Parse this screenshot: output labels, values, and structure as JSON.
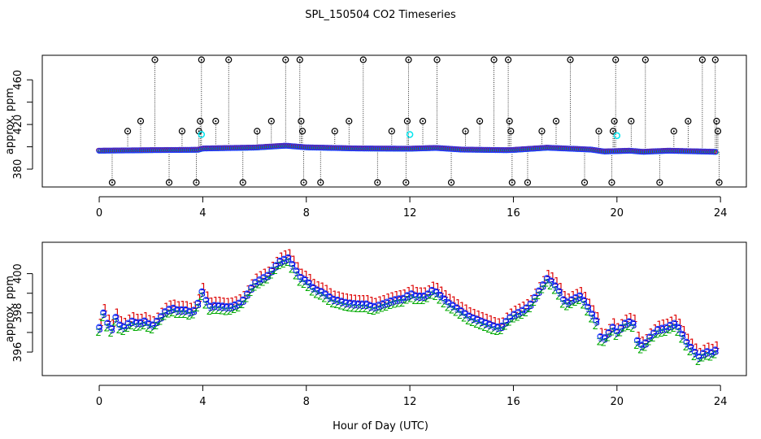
{
  "chart_data": {
    "type": "scatter",
    "title": "SPL_150504  CO2 Timeseries",
    "xlabel": "Hour of Day (UTC)",
    "panels": [
      {
        "name": "full-range",
        "ylabel": "approx. ppm",
        "xlim": [
          -2.2,
          25
        ],
        "ylim": [
          364,
          482
        ],
        "xticks": [
          0,
          4,
          8,
          12,
          16,
          20,
          24
        ],
        "yticks": [
          380,
          420,
          460
        ],
        "yticks_minor": [
          400,
          440
        ],
        "baseline": [
          [
            0.0,
            396.5
          ],
          [
            2.0,
            397.0
          ],
          [
            3.8,
            397.3
          ],
          [
            4.0,
            398.5
          ],
          [
            6.0,
            399.3
          ],
          [
            7.2,
            401.0
          ],
          [
            8.0,
            399.5
          ],
          [
            10.0,
            398.5
          ],
          [
            12.0,
            398.3
          ],
          [
            13.0,
            399.0
          ],
          [
            14.0,
            397.5
          ],
          [
            15.7,
            397.0
          ],
          [
            16.0,
            397.2
          ],
          [
            17.3,
            399.2
          ],
          [
            19.0,
            397.5
          ],
          [
            19.5,
            395.8
          ],
          [
            20.5,
            396.5
          ],
          [
            21.0,
            395.5
          ],
          [
            22.0,
            396.5
          ],
          [
            23.8,
            395.5
          ]
        ],
        "spikes": [
          {
            "x": 0.5,
            "y": 368
          },
          {
            "x": 1.1,
            "y": 414
          },
          {
            "x": 1.6,
            "y": 423
          },
          {
            "x": 2.15,
            "y": 478
          },
          {
            "x": 2.7,
            "y": 368
          },
          {
            "x": 3.2,
            "y": 414
          },
          {
            "x": 3.75,
            "y": 368
          },
          {
            "x": 3.85,
            "y": 414
          },
          {
            "x": 3.9,
            "y": 423
          },
          {
            "x": 3.95,
            "y": 478
          },
          {
            "x": 4.5,
            "y": 423
          },
          {
            "x": 5.0,
            "y": 478
          },
          {
            "x": 5.55,
            "y": 368
          },
          {
            "x": 6.1,
            "y": 414
          },
          {
            "x": 6.65,
            "y": 423
          },
          {
            "x": 7.2,
            "y": 478
          },
          {
            "x": 7.75,
            "y": 478
          },
          {
            "x": 7.8,
            "y": 423
          },
          {
            "x": 7.85,
            "y": 414
          },
          {
            "x": 7.9,
            "y": 368
          },
          {
            "x": 8.55,
            "y": 368
          },
          {
            "x": 9.1,
            "y": 414
          },
          {
            "x": 9.65,
            "y": 423
          },
          {
            "x": 10.2,
            "y": 478
          },
          {
            "x": 10.75,
            "y": 368
          },
          {
            "x": 11.3,
            "y": 414
          },
          {
            "x": 11.85,
            "y": 368
          },
          {
            "x": 11.9,
            "y": 423
          },
          {
            "x": 11.95,
            "y": 478
          },
          {
            "x": 12.5,
            "y": 423
          },
          {
            "x": 13.05,
            "y": 478
          },
          {
            "x": 13.6,
            "y": 368
          },
          {
            "x": 14.15,
            "y": 414
          },
          {
            "x": 14.7,
            "y": 423
          },
          {
            "x": 15.25,
            "y": 478
          },
          {
            "x": 15.8,
            "y": 478
          },
          {
            "x": 15.85,
            "y": 423
          },
          {
            "x": 15.9,
            "y": 414
          },
          {
            "x": 15.95,
            "y": 368
          },
          {
            "x": 16.55,
            "y": 368
          },
          {
            "x": 17.1,
            "y": 414
          },
          {
            "x": 17.65,
            "y": 423
          },
          {
            "x": 18.2,
            "y": 478
          },
          {
            "x": 18.75,
            "y": 368
          },
          {
            "x": 19.3,
            "y": 414
          },
          {
            "x": 19.8,
            "y": 368
          },
          {
            "x": 19.85,
            "y": 414
          },
          {
            "x": 19.9,
            "y": 423
          },
          {
            "x": 19.95,
            "y": 478
          },
          {
            "x": 20.55,
            "y": 423
          },
          {
            "x": 21.1,
            "y": 478
          },
          {
            "x": 21.65,
            "y": 368
          },
          {
            "x": 22.2,
            "y": 414
          },
          {
            "x": 22.75,
            "y": 423
          },
          {
            "x": 23.3,
            "y": 478
          },
          {
            "x": 23.8,
            "y": 478
          },
          {
            "x": 23.85,
            "y": 423
          },
          {
            "x": 23.9,
            "y": 414
          },
          {
            "x": 23.95,
            "y": 368
          }
        ],
        "cyan_points": [
          {
            "x": 3.95,
            "y": 411
          },
          {
            "x": 12.0,
            "y": 411
          },
          {
            "x": 20.0,
            "y": 410
          }
        ]
      },
      {
        "name": "zoomed",
        "ylabel": "approx. ppm",
        "xlim": [
          -2.2,
          25
        ],
        "ylim": [
          394.8,
          401.6
        ],
        "xticks": [
          0,
          4,
          8,
          12,
          16,
          20,
          24
        ],
        "yticks": [
          396,
          398,
          400
        ],
        "yticks_minor": [
          397,
          399
        ],
        "series": [
          {
            "name": "1",
            "color": "#dd0000",
            "offset": 0.22
          },
          {
            "name": "2",
            "color": "#00aa00",
            "offset": -0.22
          },
          {
            "name": "3",
            "color": "#0000dd",
            "offset": 0.0
          }
        ],
        "marker_labels": {
          "ch1": "1",
          "ch2": "2",
          "ch3": "3",
          "circle": "o"
        },
        "profile": [
          [
            0.0,
            397.2
          ],
          [
            0.15,
            398.0
          ],
          [
            0.3,
            397.5
          ],
          [
            0.5,
            397.2
          ],
          [
            0.6,
            397.9
          ],
          [
            0.8,
            397.4
          ],
          [
            1.0,
            397.3
          ],
          [
            1.2,
            397.6
          ],
          [
            1.5,
            397.4
          ],
          [
            1.8,
            397.5
          ],
          [
            2.0,
            397.2
          ],
          [
            2.3,
            397.6
          ],
          [
            2.5,
            398.0
          ],
          [
            2.8,
            398.3
          ],
          [
            3.0,
            398.2
          ],
          [
            3.3,
            398.2
          ],
          [
            3.6,
            398.0
          ],
          [
            3.8,
            398.4
          ],
          [
            4.0,
            399.1
          ],
          [
            4.2,
            398.2
          ],
          [
            4.5,
            398.3
          ],
          [
            5.0,
            398.3
          ],
          [
            5.5,
            398.6
          ],
          [
            6.0,
            399.5
          ],
          [
            6.5,
            399.8
          ],
          [
            7.0,
            400.6
          ],
          [
            7.3,
            400.8
          ],
          [
            7.6,
            400.2
          ],
          [
            7.8,
            399.8
          ],
          [
            8.0,
            399.7
          ],
          [
            8.3,
            399.2
          ],
          [
            8.6,
            399.0
          ],
          [
            8.8,
            398.8
          ],
          [
            9.0,
            398.6
          ],
          [
            9.5,
            398.5
          ],
          [
            10.0,
            398.5
          ],
          [
            10.3,
            398.5
          ],
          [
            10.6,
            398.3
          ],
          [
            11.0,
            398.4
          ],
          [
            11.5,
            398.6
          ],
          [
            11.8,
            398.7
          ],
          [
            12.0,
            399.0
          ],
          [
            12.2,
            398.9
          ],
          [
            12.6,
            398.9
          ],
          [
            12.9,
            399.2
          ],
          [
            13.2,
            398.8
          ],
          [
            13.5,
            398.4
          ],
          [
            14.0,
            398.0
          ],
          [
            14.3,
            397.8
          ],
          [
            14.6,
            397.7
          ],
          [
            15.0,
            397.5
          ],
          [
            15.3,
            397.3
          ],
          [
            15.5,
            397.2
          ],
          [
            15.8,
            397.6
          ],
          [
            16.0,
            397.8
          ],
          [
            16.3,
            398.0
          ],
          [
            16.6,
            398.3
          ],
          [
            17.0,
            399.2
          ],
          [
            17.3,
            399.8
          ],
          [
            17.5,
            399.6
          ],
          [
            17.8,
            399.0
          ],
          [
            18.0,
            398.4
          ],
          [
            18.3,
            398.6
          ],
          [
            18.6,
            398.8
          ],
          [
            18.9,
            398.2
          ],
          [
            19.2,
            397.6
          ],
          [
            19.4,
            396.6
          ],
          [
            19.6,
            396.9
          ],
          [
            19.9,
            397.4
          ],
          [
            20.0,
            397.0
          ],
          [
            20.3,
            397.4
          ],
          [
            20.6,
            397.5
          ],
          [
            20.8,
            396.4
          ],
          [
            21.0,
            396.2
          ],
          [
            21.3,
            396.8
          ],
          [
            21.6,
            397.2
          ],
          [
            21.9,
            397.3
          ],
          [
            22.2,
            397.5
          ],
          [
            22.4,
            397.2
          ],
          [
            22.7,
            396.4
          ],
          [
            23.0,
            395.9
          ],
          [
            23.2,
            395.6
          ],
          [
            23.4,
            396.0
          ],
          [
            23.6,
            395.9
          ],
          [
            23.8,
            396.1
          ]
        ]
      }
    ]
  }
}
